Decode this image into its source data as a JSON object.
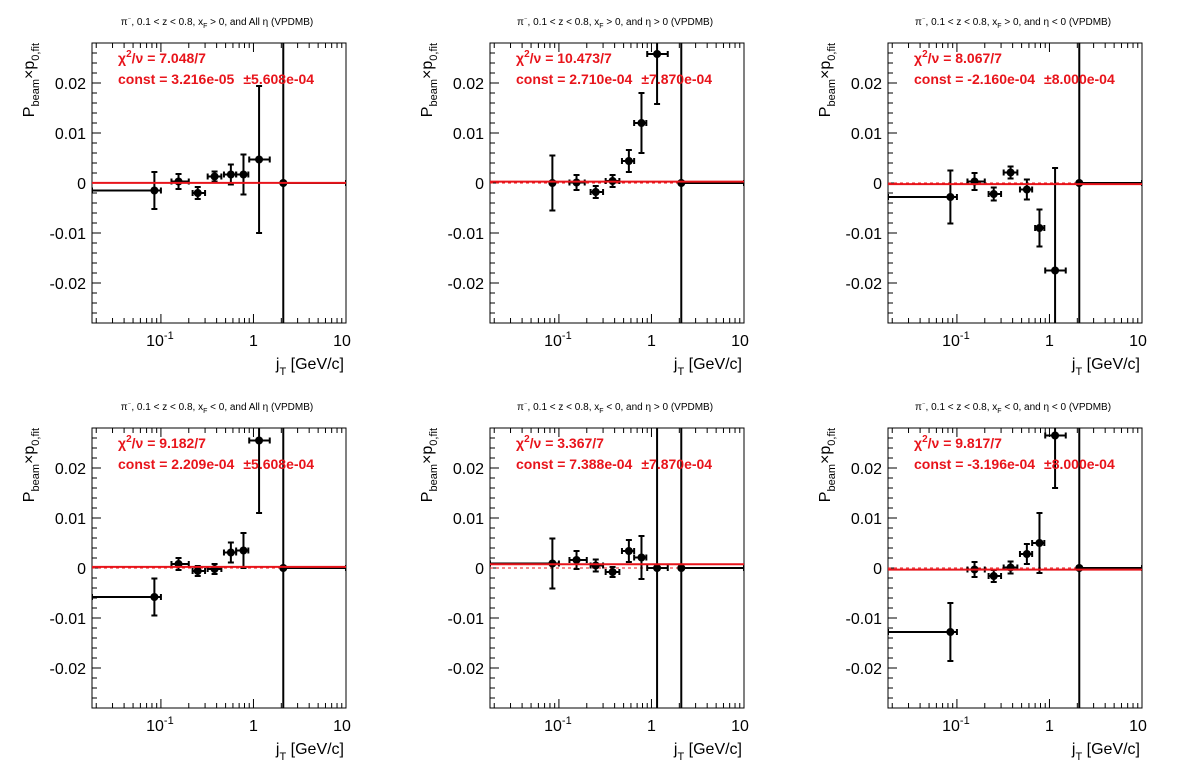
{
  "chart_data": [
    {
      "type": "scatter",
      "title": "π⁻, 0.1 < z < 0.8, x_F > 0, and All  η (VPDMB)",
      "title_parts": [
        "π",
        "⁻",
        ", 0.1 < z < 0.8, x",
        "F",
        " > 0, and All  η (VPDMB)"
      ],
      "xlabel_main": "j",
      "xlabel_sub": "T",
      "xlabel_unit": " [GeV/c]",
      "ylabel_main": "P",
      "ylabel_sub1": "beam",
      "ylabel_mid": "×p",
      "ylabel_sub2": "0,fit",
      "xscale": "log",
      "xlim": [
        0.018,
        10
      ],
      "ylim": [
        -0.028,
        0.028
      ],
      "xticks": [
        "10",
        "1",
        "10"
      ],
      "xtick_exp": "-1",
      "yticks": [
        "0.02",
        "0.01",
        "0",
        "-0.01",
        "-0.02"
      ],
      "chi2_text": "χ²/ν = 7.048/7",
      "chi2_parts": [
        "χ",
        "2",
        "/ν = 7.048/7"
      ],
      "const_text": "const = 3.216e-05  ±5.608e-04",
      "const_parts": [
        "const = 3.216e-05",
        "±5.608e-04"
      ],
      "fit_value": 3.22e-05,
      "points": [
        {
          "x": 0.085,
          "xlo": 0.018,
          "xhi": 0.1,
          "y": -0.0015,
          "yerr": 0.0037
        },
        {
          "x": 0.155,
          "xlo": 0.13,
          "xhi": 0.2,
          "y": 0.0003,
          "yerr": 0.0015
        },
        {
          "x": 0.25,
          "xlo": 0.22,
          "xhi": 0.3,
          "y": -0.002,
          "yerr": 0.0012
        },
        {
          "x": 0.38,
          "xlo": 0.32,
          "xhi": 0.45,
          "y": 0.0013,
          "yerr": 0.001
        },
        {
          "x": 0.57,
          "xlo": 0.48,
          "xhi": 0.65,
          "y": 0.0017,
          "yerr": 0.002
        },
        {
          "x": 0.78,
          "xlo": 0.65,
          "xhi": 0.88,
          "y": 0.0017,
          "yerr": 0.004
        },
        {
          "x": 1.15,
          "xlo": 0.9,
          "xhi": 1.5,
          "y": 0.0047,
          "yerr": 0.0147
        },
        {
          "x": 2.1,
          "xlo": 2.1,
          "xhi": 10,
          "y": 0.0,
          "yerr": 0.03
        }
      ]
    },
    {
      "type": "scatter",
      "title": "π⁻, 0.1 < z < 0.8, x_F > 0, and η > 0 (VPDMB)",
      "title_parts": [
        "π",
        "⁻",
        ", 0.1 < z < 0.8, x",
        "F",
        " > 0, and η > 0 (VPDMB)"
      ],
      "xlabel_main": "j",
      "xlabel_sub": "T",
      "xlabel_unit": " [GeV/c]",
      "ylabel_main": "P",
      "ylabel_sub1": "beam",
      "ylabel_mid": "×p",
      "ylabel_sub2": "0,fit",
      "xscale": "log",
      "xlim": [
        0.018,
        10
      ],
      "ylim": [
        -0.028,
        0.028
      ],
      "xticks": [
        "10",
        "1",
        "10"
      ],
      "xtick_exp": "-1",
      "yticks": [
        "0.02",
        "0.01",
        "0",
        "-0.01",
        "-0.02"
      ],
      "chi2_text": "χ²/ν = 10.473/7",
      "chi2_parts": [
        "χ",
        "2",
        "/ν = 10.473/7"
      ],
      "const_text": "const = 2.710e-04  ±7.870e-04",
      "const_parts": [
        "const = 2.710e-04",
        "±7.870e-04"
      ],
      "fit_value": 0.000271,
      "points": [
        {
          "x": 0.085,
          "xlo": 0.085,
          "xhi": 0.085,
          "y": 0.0,
          "yerr": 0.0055
        },
        {
          "x": 0.155,
          "xlo": 0.13,
          "xhi": 0.19,
          "y": 0.0001,
          "yerr": 0.0015
        },
        {
          "x": 0.25,
          "xlo": 0.22,
          "xhi": 0.3,
          "y": -0.0018,
          "yerr": 0.0012
        },
        {
          "x": 0.38,
          "xlo": 0.32,
          "xhi": 0.45,
          "y": 0.0004,
          "yerr": 0.0012
        },
        {
          "x": 0.57,
          "xlo": 0.48,
          "xhi": 0.65,
          "y": 0.0044,
          "yerr": 0.0022
        },
        {
          "x": 0.78,
          "xlo": 0.65,
          "xhi": 0.88,
          "y": 0.012,
          "yerr": 0.006
        },
        {
          "x": 1.15,
          "xlo": 0.9,
          "xhi": 1.5,
          "y": 0.0258,
          "yerr": 0.01
        },
        {
          "x": 2.1,
          "xlo": 2.1,
          "xhi": 10,
          "y": 0.0,
          "yerr": 0.03
        }
      ]
    },
    {
      "type": "scatter",
      "title": "π⁻, 0.1 < z < 0.8, x_F > 0, and η < 0 (VPDMB)",
      "title_parts": [
        "π",
        "⁻",
        ", 0.1 < z < 0.8, x",
        "F",
        " > 0, and η < 0 (VPDMB)"
      ],
      "xlabel_main": "j",
      "xlabel_sub": "T",
      "xlabel_unit": " [GeV/c]",
      "ylabel_main": "P",
      "ylabel_sub1": "beam",
      "ylabel_mid": "×p",
      "ylabel_sub2": "0,fit",
      "xscale": "log",
      "xlim": [
        0.018,
        10
      ],
      "ylim": [
        -0.028,
        0.028
      ],
      "xticks": [
        "10",
        "1",
        "10"
      ],
      "xtick_exp": "-1",
      "yticks": [
        "0.02",
        "0.01",
        "0",
        "-0.01",
        "-0.02"
      ],
      "chi2_text": "χ²/ν = 8.067/7",
      "chi2_parts": [
        "χ",
        "2",
        "/ν = 8.067/7"
      ],
      "const_text": "const = -2.160e-04  ±8.000e-04",
      "const_parts": [
        "const = -2.160e-04",
        "±8.000e-04"
      ],
      "fit_value": -0.000216,
      "points": [
        {
          "x": 0.085,
          "xlo": 0.018,
          "xhi": 0.1,
          "y": -0.0028,
          "yerr": 0.0053
        },
        {
          "x": 0.155,
          "xlo": 0.13,
          "xhi": 0.2,
          "y": 0.0003,
          "yerr": 0.0017
        },
        {
          "x": 0.25,
          "xlo": 0.22,
          "xhi": 0.3,
          "y": -0.0022,
          "yerr": 0.0013
        },
        {
          "x": 0.38,
          "xlo": 0.32,
          "xhi": 0.45,
          "y": 0.0021,
          "yerr": 0.0012
        },
        {
          "x": 0.57,
          "xlo": 0.48,
          "xhi": 0.65,
          "y": -0.0013,
          "yerr": 0.002
        },
        {
          "x": 0.78,
          "xlo": 0.7,
          "xhi": 0.88,
          "y": -0.009,
          "yerr": 0.0037
        },
        {
          "x": 1.15,
          "xlo": 0.9,
          "xhi": 1.5,
          "y": -0.0175,
          "yerr": 0.0205
        },
        {
          "x": 2.1,
          "xlo": 2.1,
          "xhi": 10,
          "y": 0.0,
          "yerr": 0.03
        }
      ]
    },
    {
      "type": "scatter",
      "title": "π⁻, 0.1 < z < 0.8, x_F < 0, and All  η (VPDMB)",
      "title_parts": [
        "π",
        "⁻",
        ", 0.1 < z < 0.8, x",
        "F",
        " < 0, and All  η (VPDMB)"
      ],
      "xlabel_main": "j",
      "xlabel_sub": "T",
      "xlabel_unit": " [GeV/c]",
      "ylabel_main": "P",
      "ylabel_sub1": "beam",
      "ylabel_mid": "×p",
      "ylabel_sub2": "0,fit",
      "xscale": "log",
      "xlim": [
        0.018,
        10
      ],
      "ylim": [
        -0.028,
        0.028
      ],
      "xticks": [
        "10",
        "1",
        "10"
      ],
      "xtick_exp": "-1",
      "yticks": [
        "0.02",
        "0.01",
        "0",
        "-0.01",
        "-0.02"
      ],
      "chi2_text": "χ²/ν = 9.182/7",
      "chi2_parts": [
        "χ",
        "2",
        "/ν = 9.182/7"
      ],
      "const_text": "const = 2.209e-04  ±5.608e-04",
      "const_parts": [
        "const = 2.209e-04",
        "±5.608e-04"
      ],
      "fit_value": 0.000221,
      "points": [
        {
          "x": 0.085,
          "xlo": 0.018,
          "xhi": 0.1,
          "y": -0.0058,
          "yerr": 0.0037
        },
        {
          "x": 0.155,
          "xlo": 0.13,
          "xhi": 0.2,
          "y": 0.0008,
          "yerr": 0.0012
        },
        {
          "x": 0.25,
          "xlo": 0.22,
          "xhi": 0.3,
          "y": -0.0006,
          "yerr": 0.001
        },
        {
          "x": 0.38,
          "xlo": 0.32,
          "xhi": 0.45,
          "y": -0.0002,
          "yerr": 0.001
        },
        {
          "x": 0.57,
          "xlo": 0.48,
          "xhi": 0.65,
          "y": 0.0031,
          "yerr": 0.002
        },
        {
          "x": 0.78,
          "xlo": 0.65,
          "xhi": 0.88,
          "y": 0.0035,
          "yerr": 0.0035
        },
        {
          "x": 1.15,
          "xlo": 0.9,
          "xhi": 1.5,
          "y": 0.0255,
          "yerr": 0.0145
        },
        {
          "x": 2.1,
          "xlo": 2.1,
          "xhi": 10,
          "y": 0.0,
          "yerr": 0.03
        }
      ]
    },
    {
      "type": "scatter",
      "title": "π⁻, 0.1 < z < 0.8, x_F < 0, and η > 0 (VPDMB)",
      "title_parts": [
        "π",
        "⁻",
        ", 0.1 < z < 0.8, x",
        "F",
        " < 0, and η > 0 (VPDMB)"
      ],
      "xlabel_main": "j",
      "xlabel_sub": "T",
      "xlabel_unit": " [GeV/c]",
      "ylabel_main": "P",
      "ylabel_sub1": "beam",
      "ylabel_mid": "×p",
      "ylabel_sub2": "0,fit",
      "xscale": "log",
      "xlim": [
        0.018,
        10
      ],
      "ylim": [
        -0.028,
        0.028
      ],
      "xticks": [
        "10",
        "1",
        "10"
      ],
      "xtick_exp": "-1",
      "yticks": [
        "0.02",
        "0.01",
        "0",
        "-0.01",
        "-0.02"
      ],
      "chi2_text": "χ²/ν = 3.367/7",
      "chi2_parts": [
        "χ",
        "2",
        "/ν = 3.367/7"
      ],
      "const_text": "const = 7.388e-04  ±7.870e-04",
      "const_parts": [
        "const = 7.388e-04",
        "±7.870e-04"
      ],
      "fit_value": 0.000739,
      "points": [
        {
          "x": 0.085,
          "xlo": 0.018,
          "xhi": 0.1,
          "y": 0.0009,
          "yerr": 0.005
        },
        {
          "x": 0.155,
          "xlo": 0.13,
          "xhi": 0.2,
          "y": 0.0016,
          "yerr": 0.0018
        },
        {
          "x": 0.25,
          "xlo": 0.22,
          "xhi": 0.3,
          "y": 0.0005,
          "yerr": 0.0012
        },
        {
          "x": 0.38,
          "xlo": 0.32,
          "xhi": 0.45,
          "y": -0.0008,
          "yerr": 0.001
        },
        {
          "x": 0.57,
          "xlo": 0.48,
          "xhi": 0.65,
          "y": 0.0034,
          "yerr": 0.0022
        },
        {
          "x": 0.78,
          "xlo": 0.65,
          "xhi": 0.88,
          "y": 0.0021,
          "yerr": 0.0043
        },
        {
          "x": 1.15,
          "xlo": 0.9,
          "xhi": 1.5,
          "y": 0.0,
          "yerr": 0.03
        },
        {
          "x": 2.1,
          "xlo": 2.1,
          "xhi": 10,
          "y": 0.0,
          "yerr": 0.03
        }
      ]
    },
    {
      "type": "scatter",
      "title": "π⁻, 0.1 < z < 0.8, x_F < 0, and η < 0 (VPDMB)",
      "title_parts": [
        "π",
        "⁻",
        ", 0.1 < z < 0.8, x",
        "F",
        " < 0, and η < 0 (VPDMB)"
      ],
      "xlabel_main": "j",
      "xlabel_sub": "T",
      "xlabel_unit": " [GeV/c]",
      "ylabel_main": "P",
      "ylabel_sub1": "beam",
      "ylabel_mid": "×p",
      "ylabel_sub2": "0,fit",
      "xscale": "log",
      "xlim": [
        0.018,
        10
      ],
      "ylim": [
        -0.028,
        0.028
      ],
      "xticks": [
        "10",
        "1",
        "10"
      ],
      "xtick_exp": "-1",
      "yticks": [
        "0.02",
        "0.01",
        "0",
        "-0.01",
        "-0.02"
      ],
      "chi2_text": "χ²/ν = 9.817/7",
      "chi2_parts": [
        "χ",
        "2",
        "/ν = 9.817/7"
      ],
      "const_text": "const = -3.196e-04  ±8.000e-04",
      "const_parts": [
        "const = -3.196e-04",
        "±8.000e-04"
      ],
      "fit_value": -0.00032,
      "points": [
        {
          "x": 0.085,
          "xlo": 0.018,
          "xhi": 0.1,
          "y": -0.0128,
          "yerr": 0.0058
        },
        {
          "x": 0.155,
          "xlo": 0.13,
          "xhi": 0.2,
          "y": -0.0003,
          "yerr": 0.0015
        },
        {
          "x": 0.25,
          "xlo": 0.22,
          "xhi": 0.3,
          "y": -0.0016,
          "yerr": 0.0012
        },
        {
          "x": 0.38,
          "xlo": 0.32,
          "xhi": 0.45,
          "y": 0.0001,
          "yerr": 0.0012
        },
        {
          "x": 0.57,
          "xlo": 0.48,
          "xhi": 0.65,
          "y": 0.0028,
          "yerr": 0.002
        },
        {
          "x": 0.78,
          "xlo": 0.65,
          "xhi": 0.88,
          "y": 0.005,
          "yerr": 0.006
        },
        {
          "x": 1.15,
          "xlo": 0.9,
          "xhi": 1.5,
          "y": 0.0265,
          "yerr": 0.0105
        },
        {
          "x": 2.1,
          "xlo": 2.1,
          "xhi": 10,
          "y": 0.0,
          "yerr": 0.03
        }
      ]
    }
  ]
}
